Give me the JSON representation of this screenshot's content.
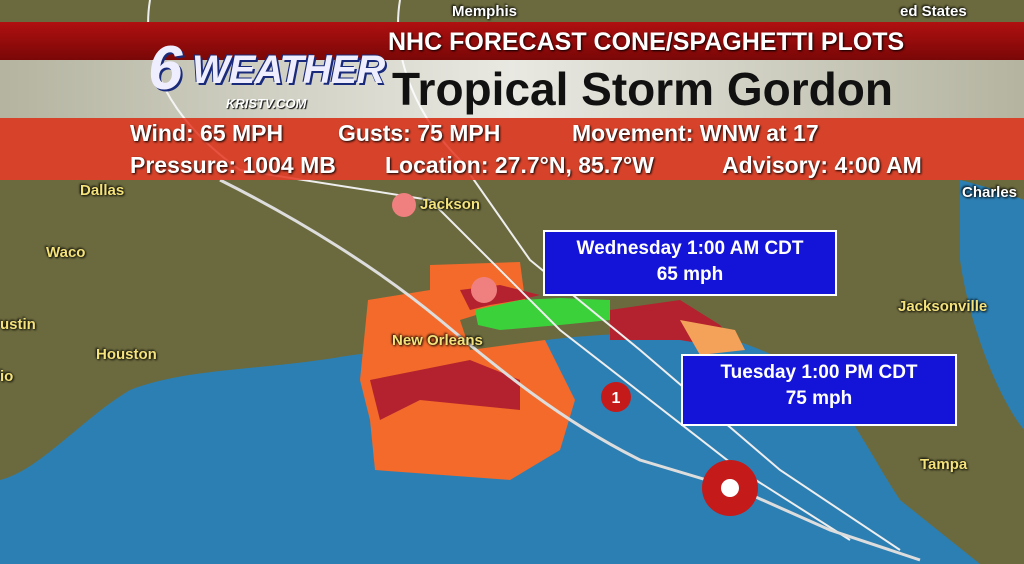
{
  "logo": {
    "number": "6",
    "name": "WEATHER",
    "url": "KRISTV.COM"
  },
  "header": {
    "subtitle": "NHC FORECAST CONE/SPAGHETTI PLOTS",
    "title": "Tropical Storm Gordon"
  },
  "stats": {
    "wind": "Wind: 65 MPH",
    "gusts": "Gusts: 75 MPH",
    "movement": "Movement: WNW at 17",
    "pressure": "Pressure: 1004 MB",
    "location": "Location: 27.7°N, 85.7°W",
    "advisory": "Advisory: 4:00 AM"
  },
  "cities": {
    "memphis": "Memphis",
    "united_states": "ed States",
    "dallas": "Dallas",
    "jackson": "Jackson",
    "waco": "Waco",
    "austin": "ustin",
    "houston": "Houston",
    "new_orleans": "New Orleans",
    "jacksonville": "Jacksonville",
    "tampa": "Tampa",
    "charleston": "Charles",
    "san_antonio": "io"
  },
  "callouts": [
    {
      "time": "Wednesday 1:00 AM CDT",
      "wind": "65 mph"
    },
    {
      "time": "Tuesday 1:00 PM CDT",
      "wind": "75 mph"
    }
  ],
  "storm_marker": {
    "label": "1"
  },
  "colors": {
    "land": "#6b6a3e",
    "water": "#2c7fb3",
    "tropical_storm_warning": "#f36a2a",
    "hurricane_watch": "#b3222e",
    "tropical_storm_watch": "#f4a15a",
    "green_warning": "#3bd13b",
    "callout": "#1414d8",
    "banner": "#b01010",
    "storm_icon": "#c41a1a"
  }
}
